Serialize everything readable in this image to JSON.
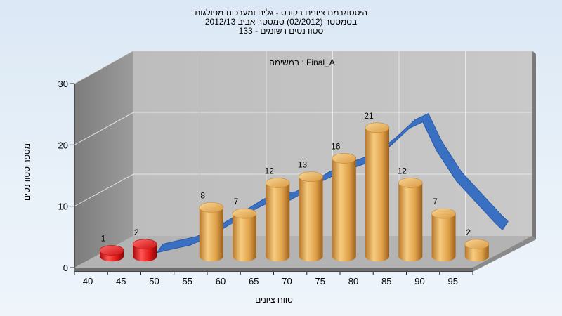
{
  "chart_data": {
    "type": "bar",
    "title_lines": [
      "היסטוגרמת ציונים בקורס - גלים ומערכות מפולגות",
      "בסמסטר  (02/2012)  סמסטר אביב 2012/13",
      "סטודנטים רשומים - 133"
    ],
    "annotation": "במשימה : Final_A",
    "xlabel": "טווח ציונים",
    "ylabel": "מספר סטודנטים",
    "categories": [
      "40",
      "45",
      "50",
      "55",
      "60",
      "65",
      "70",
      "75",
      "80",
      "85",
      "90",
      "95"
    ],
    "bars": [
      {
        "x": 42.5,
        "value": 1,
        "color": "red"
      },
      {
        "x": 47.5,
        "value": 2,
        "color": "red"
      },
      {
        "x": 57.5,
        "value": 8,
        "color": "gold"
      },
      {
        "x": 62.5,
        "value": 7,
        "color": "gold"
      },
      {
        "x": 67.5,
        "value": 12,
        "color": "gold"
      },
      {
        "x": 72.5,
        "value": 13,
        "color": "gold"
      },
      {
        "x": 77.5,
        "value": 16,
        "color": "gold"
      },
      {
        "x": 82.5,
        "value": 21,
        "color": "gold"
      },
      {
        "x": 87.5,
        "value": 12,
        "color": "gold"
      },
      {
        "x": 92.5,
        "value": 7,
        "color": "gold"
      },
      {
        "x": 97.5,
        "value": 2,
        "color": "gold"
      }
    ],
    "curve": {
      "x": [
        48,
        50,
        53,
        56,
        60,
        63,
        65,
        68,
        70,
        73,
        76,
        80,
        83,
        86,
        88,
        90,
        93,
        96,
        99,
        100
      ],
      "y": [
        0.3,
        0.8,
        1.5,
        3,
        5.5,
        7.5,
        8.5,
        8.8,
        10,
        12,
        13.5,
        15,
        17.5,
        20.5,
        21.5,
        17,
        12,
        8.5,
        5,
        4
      ]
    },
    "y_ticks": [
      0,
      10,
      20,
      30
    ],
    "ylim": [
      0,
      30
    ],
    "xlim": [
      40,
      100
    ],
    "grid": true,
    "colors": {
      "gold": "#e0a84a",
      "red": "#e01818",
      "curve": "#3a70c2",
      "plot_back": "#c3c3c3",
      "side_wall": "#8e8e8e",
      "floor": "#b0b0b0"
    }
  }
}
